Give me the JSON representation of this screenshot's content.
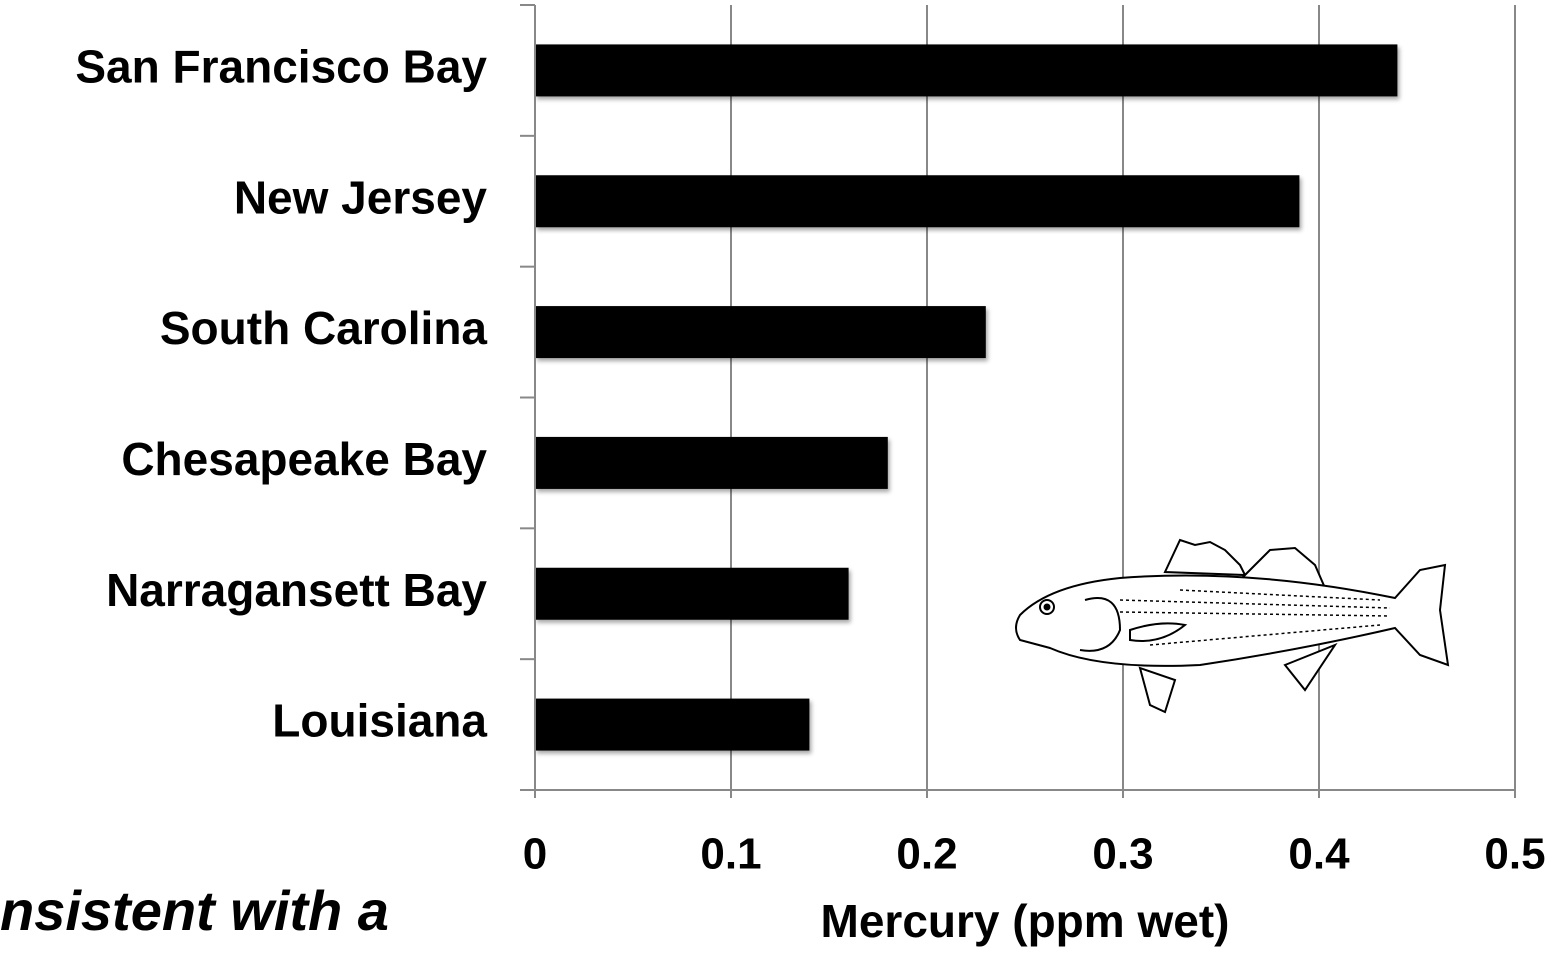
{
  "chart_data": {
    "type": "bar",
    "orientation": "horizontal",
    "categories": [
      "San Francisco Bay",
      "New Jersey",
      "South Carolina",
      "Chesapeake Bay",
      "Narragansett Bay",
      "Louisiana"
    ],
    "values": [
      0.44,
      0.39,
      0.23,
      0.18,
      0.16,
      0.14
    ],
    "color": "#000000",
    "xlim": [
      0,
      0.5
    ],
    "xticks": [
      0,
      0.1,
      0.2,
      0.3,
      0.4,
      0.5
    ],
    "xlabel": "Mercury (ppm wet)",
    "grid": true,
    "annotation": "nsistent with a"
  }
}
